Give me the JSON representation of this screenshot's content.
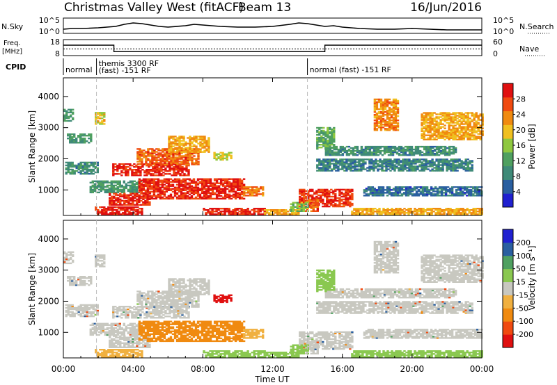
{
  "header": {
    "title": "Christmas Valley West (fitACF)",
    "beam": "Beam 13",
    "date": "16/Jun/2016"
  },
  "colors": {
    "power_scale": [
      "#2020d0",
      "#2a5fa0",
      "#3f8a78",
      "#4fa060",
      "#8fc840",
      "#f0c020",
      "#f08a10",
      "#f04a10",
      "#e01010"
    ],
    "velocity_scale": [
      "#e01010",
      "#f04a10",
      "#f08a10",
      "#f0b040",
      "#c8c8c0",
      "#8ac850",
      "#4fa060",
      "#2a5fa0",
      "#2020d0"
    ],
    "ground_scatter": "#c8c8c0"
  },
  "status_panels": {
    "nsky": {
      "label": "N.Sky",
      "left_ticks": [
        "10^5",
        "10^0"
      ],
      "right_ticks": [
        "10^5",
        "10^0"
      ],
      "right_label": "N.Search"
    },
    "freq": {
      "label_lines": [
        "Freq.",
        "[MHz]"
      ],
      "left_ticks": [
        "18",
        "8"
      ],
      "right_ticks": [
        "60",
        "0"
      ],
      "right_label": "Nave"
    },
    "cpid": {
      "label": "CPID",
      "segments": [
        {
          "label": "normal",
          "start_h": 0.0,
          "end_h": 1.9
        },
        {
          "label": "themis 3300 RF",
          "label2": "(fast) -151 RF",
          "start_h": 1.9,
          "end_h": 14.0
        },
        {
          "label": "normal (fast) -151 RF",
          "start_h": 14.0,
          "end_h": 24.0
        }
      ]
    }
  },
  "axes": {
    "x_ticks": [
      "00:00",
      "04:00",
      "08:00",
      "12:00",
      "16:00",
      "20:00",
      "00:00"
    ],
    "xlabel": "Time UT",
    "y_ticks": [
      "1000",
      "2000",
      "3000",
      "4000"
    ],
    "ylabel": "Slant Range [km]"
  },
  "colorbars": {
    "power": {
      "label": "Power [dB]",
      "ticks": [
        "4",
        "8",
        "12",
        "16",
        "20",
        "24",
        "28"
      ]
    },
    "velocity": {
      "label": "Velocity [m s⁻¹]",
      "ticks": [
        "200",
        "100",
        "50",
        "15",
        "-15",
        "-50",
        "-100",
        "-200"
      ]
    }
  },
  "chart_data": {
    "type": "heatmap",
    "x_range_hours": [
      0,
      24
    ],
    "y_range_km": [
      180,
      4600
    ],
    "mode_change_hours": [
      1.9,
      14.0
    ],
    "nsky_trace": [
      [
        0,
        0.25
      ],
      [
        0.5,
        0.3
      ],
      [
        1,
        0.3
      ],
      [
        1.5,
        0.32
      ],
      [
        2,
        0.35
      ],
      [
        3,
        0.45
      ],
      [
        3.5,
        0.6
      ],
      [
        4,
        0.7
      ],
      [
        4.5,
        0.65
      ],
      [
        5,
        0.55
      ],
      [
        5.5,
        0.45
      ],
      [
        6,
        0.4
      ],
      [
        7,
        0.5
      ],
      [
        7.5,
        0.6
      ],
      [
        8,
        0.55
      ],
      [
        8.5,
        0.5
      ],
      [
        9,
        0.45
      ],
      [
        10,
        0.4
      ],
      [
        11,
        0.4
      ],
      [
        12,
        0.45
      ],
      [
        13,
        0.6
      ],
      [
        13.5,
        0.7
      ],
      [
        14,
        0.65
      ],
      [
        14.5,
        0.55
      ],
      [
        15,
        0.45
      ],
      [
        15.5,
        0.5
      ],
      [
        16,
        0.4
      ],
      [
        16.5,
        0.35
      ],
      [
        17,
        0.3
      ],
      [
        18,
        0.25
      ],
      [
        19,
        0.25
      ],
      [
        20,
        0.3
      ],
      [
        21,
        0.25
      ],
      [
        22,
        0.2
      ],
      [
        23,
        0.2
      ],
      [
        24,
        0.2
      ]
    ],
    "frequency_mhz": [
      [
        0,
        14.5
      ],
      [
        2.9,
        14.5
      ],
      [
        2.9,
        10.5
      ],
      [
        15.0,
        10.5
      ],
      [
        15.0,
        14.5
      ],
      [
        24,
        14.5
      ]
    ],
    "nave": [
      [
        0,
        25
      ],
      [
        24,
        25
      ]
    ],
    "power_db": [
      {
        "t0": 0.1,
        "t1": 2.0,
        "r0": 1500,
        "r1": 1900,
        "db": 9
      },
      {
        "t0": 0.2,
        "t1": 1.6,
        "r0": 2500,
        "r1": 2800,
        "db": 10
      },
      {
        "t0": 0.0,
        "t1": 0.6,
        "r0": 3200,
        "r1": 3600,
        "db": 10
      },
      {
        "t0": 1.8,
        "t1": 2.3,
        "r0": 3100,
        "r1": 3500,
        "db": 18
      },
      {
        "t0": 2.8,
        "t1": 7.2,
        "r0": 1450,
        "r1": 1850,
        "db": 27
      },
      {
        "t0": 4.2,
        "t1": 7.8,
        "r0": 1800,
        "r1": 2300,
        "db": 24
      },
      {
        "t0": 6.0,
        "t1": 8.3,
        "r0": 2200,
        "r1": 2700,
        "db": 20
      },
      {
        "t0": 8.6,
        "t1": 9.6,
        "r0": 1950,
        "r1": 2200,
        "db": 16
      },
      {
        "t0": 1.5,
        "t1": 4.5,
        "r0": 900,
        "r1": 1300,
        "db": 10
      },
      {
        "t0": 2.6,
        "t1": 5.0,
        "r0": 500,
        "r1": 900,
        "db": 27
      },
      {
        "t0": 4.3,
        "t1": 10.3,
        "r0": 700,
        "r1": 1350,
        "db": 27
      },
      {
        "t0": 10.3,
        "t1": 11.4,
        "r0": 800,
        "r1": 1100,
        "db": 22
      },
      {
        "t0": 1.8,
        "t1": 4.5,
        "r0": 200,
        "r1": 450,
        "db": 28
      },
      {
        "t0": 8.0,
        "t1": 11.5,
        "r0": 200,
        "r1": 400,
        "db": 27
      },
      {
        "t0": 11.5,
        "t1": 13.5,
        "r0": 200,
        "r1": 350,
        "db": 20
      },
      {
        "t0": 13.5,
        "t1": 16.5,
        "r0": 450,
        "r1": 1000,
        "db": 26
      },
      {
        "t0": 13.8,
        "t1": 14.6,
        "r0": 300,
        "r1": 700,
        "db": 24
      },
      {
        "t0": 16.5,
        "t1": 24.0,
        "r0": 200,
        "r1": 400,
        "db": 20
      },
      {
        "t0": 14.5,
        "t1": 23.5,
        "r0": 1600,
        "r1": 2000,
        "db": 8
      },
      {
        "t0": 15.0,
        "t1": 22.5,
        "r0": 2100,
        "r1": 2400,
        "db": 9
      },
      {
        "t0": 17.2,
        "t1": 24.0,
        "r0": 800,
        "r1": 1100,
        "db": 6
      },
      {
        "t0": 17.8,
        "t1": 19.2,
        "r0": 2900,
        "r1": 3900,
        "db": 22
      },
      {
        "t0": 20.5,
        "t1": 24.0,
        "r0": 2600,
        "r1": 3500,
        "db": 20
      },
      {
        "t0": 14.5,
        "t1": 15.5,
        "r0": 2300,
        "r1": 3000,
        "db": 12
      },
      {
        "t0": 13.0,
        "t1": 14.0,
        "r0": 300,
        "r1": 600,
        "db": 14
      }
    ],
    "velocity_ms": [
      {
        "t0": 0.1,
        "t1": 2.0,
        "r0": 1500,
        "r1": 1900,
        "v": 0
      },
      {
        "t0": 0.2,
        "t1": 1.6,
        "r0": 2500,
        "r1": 2800,
        "v": 0
      },
      {
        "t0": 0.0,
        "t1": 0.6,
        "r0": 3200,
        "r1": 3600,
        "v": 0
      },
      {
        "t0": 1.8,
        "t1": 2.3,
        "r0": 3100,
        "r1": 3500,
        "v": 0
      },
      {
        "t0": 2.8,
        "t1": 7.2,
        "r0": 1450,
        "r1": 1850,
        "v": 0
      },
      {
        "t0": 4.2,
        "t1": 7.8,
        "r0": 1800,
        "r1": 2300,
        "v": 0
      },
      {
        "t0": 6.0,
        "t1": 8.3,
        "r0": 2200,
        "r1": 2700,
        "v": 0
      },
      {
        "t0": 8.6,
        "t1": 9.6,
        "r0": 1950,
        "r1": 2200,
        "v": -250
      },
      {
        "t0": 1.5,
        "t1": 4.5,
        "r0": 900,
        "r1": 1300,
        "v": 0
      },
      {
        "t0": 2.6,
        "t1": 5.0,
        "r0": 500,
        "r1": 900,
        "v": 0
      },
      {
        "t0": 4.3,
        "t1": 10.3,
        "r0": 700,
        "r1": 1350,
        "v": -60
      },
      {
        "t0": 10.3,
        "t1": 11.4,
        "r0": 800,
        "r1": 1100,
        "v": -40
      },
      {
        "t0": 1.8,
        "t1": 4.5,
        "r0": 200,
        "r1": 450,
        "v": -40
      },
      {
        "t0": 8.0,
        "t1": 11.5,
        "r0": 200,
        "r1": 400,
        "v": 40
      },
      {
        "t0": 11.5,
        "t1": 13.5,
        "r0": 200,
        "r1": 350,
        "v": 30
      },
      {
        "t0": 13.5,
        "t1": 16.5,
        "r0": 450,
        "r1": 1000,
        "v": 0
      },
      {
        "t0": 13.8,
        "t1": 14.6,
        "r0": 300,
        "r1": 700,
        "v": 0
      },
      {
        "t0": 16.5,
        "t1": 24.0,
        "r0": 200,
        "r1": 400,
        "v": 30
      },
      {
        "t0": 14.5,
        "t1": 23.5,
        "r0": 1600,
        "r1": 2000,
        "v": 0
      },
      {
        "t0": 15.0,
        "t1": 22.5,
        "r0": 2100,
        "r1": 2400,
        "v": 0
      },
      {
        "t0": 17.2,
        "t1": 24.0,
        "r0": 800,
        "r1": 1100,
        "v": 0
      },
      {
        "t0": 17.8,
        "t1": 19.2,
        "r0": 2900,
        "r1": 3900,
        "v": 0
      },
      {
        "t0": 20.5,
        "t1": 24.0,
        "r0": 2600,
        "r1": 3500,
        "v": 0
      },
      {
        "t0": 14.5,
        "t1": 15.5,
        "r0": 2300,
        "r1": 3000,
        "v": 30
      },
      {
        "t0": 13.0,
        "t1": 14.0,
        "r0": 300,
        "r1": 600,
        "v": 30
      }
    ]
  }
}
